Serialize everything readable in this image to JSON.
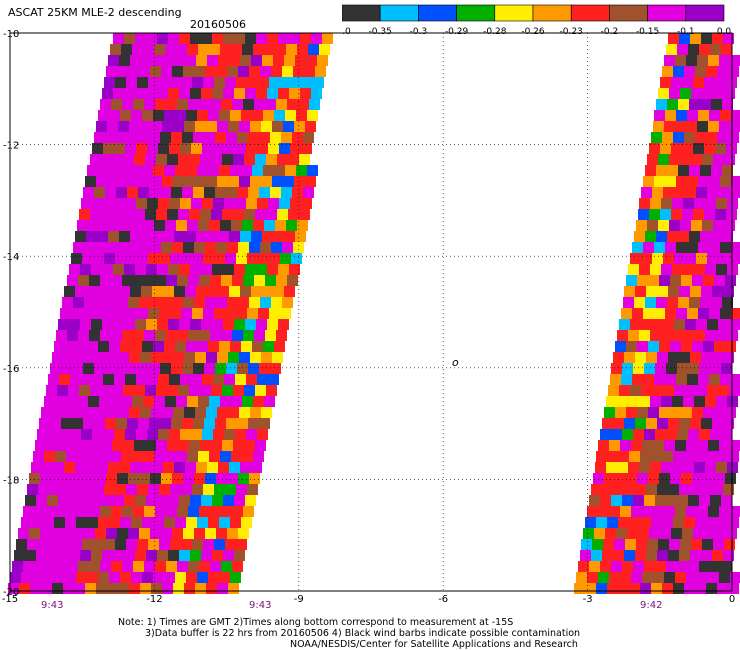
{
  "title": "ASCAT 25KM MLE-2 descending",
  "date": "20160506",
  "colorbar": {
    "colors": [
      "#333333",
      "#00bfff",
      "#0050ff",
      "#00b000",
      "#ffee00",
      "#ff9900",
      "#ff2020",
      "#a0522d",
      "#e000e0",
      "#9a00c8"
    ],
    "labels": [
      "-1.0",
      "-0.35",
      "-0.3",
      "-0.29",
      "-0.28",
      "-0.26",
      "-0.23",
      "-0.2",
      "-0.15",
      "-0.1",
      "0.0"
    ]
  },
  "axes": {
    "x_ticks": [
      "-15",
      "-12",
      "-9",
      "-6",
      "-3",
      "0"
    ],
    "y_ticks": [
      "-10",
      "-12",
      "-14",
      "-16",
      "-18",
      "-20"
    ]
  },
  "times": [
    "9:43",
    "9:43",
    "9:42"
  ],
  "notes": [
    "Note: 1) Times are GMT 2)Times along bottom correspond to measurement at -15S",
    "3)Data buffer is 22 hrs from 20160506 4) Black wind barbs indicate possible contamination",
    "NOAA/NESDIS/Center for Satellite Applications and Research"
  ],
  "marker_symbol": "o"
}
